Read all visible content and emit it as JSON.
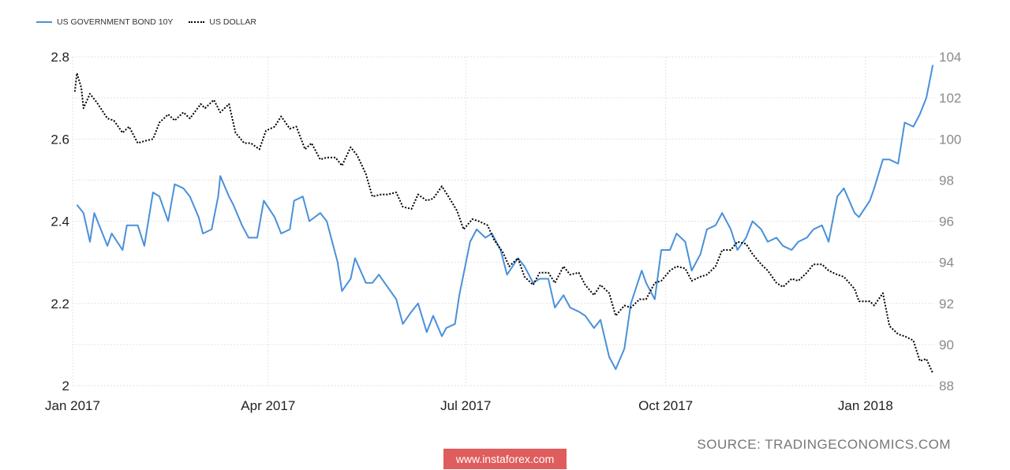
{
  "legend": [
    {
      "label": "US GOVERNMENT BOND 10Y",
      "color": "#4a90d9",
      "style": "solid"
    },
    {
      "label": "US DOLLAR",
      "color": "#000000",
      "style": "dotted"
    }
  ],
  "source": "SOURCE: TRADINGECONOMICS.COM",
  "watermark": "www.instaforex.com",
  "chart_data": {
    "type": "line",
    "grid": true,
    "legend_position": "top-left",
    "x_ticks": [
      {
        "label": "Jan 2017",
        "date": "2017-01-01"
      },
      {
        "label": "Apr 2017",
        "date": "2017-04-01"
      },
      {
        "label": "Jul 2017",
        "date": "2017-07-01"
      },
      {
        "label": "Oct 2017",
        "date": "2017-10-01"
      },
      {
        "label": "Jan 2018",
        "date": "2018-01-01"
      }
    ],
    "xlim": [
      "2017-01-01",
      "2018-02-02"
    ],
    "left_axis": {
      "ylim": [
        2.0,
        2.8
      ],
      "ticks": [
        "2",
        "2.2",
        "2.4",
        "2.6",
        "2.8"
      ]
    },
    "right_axis": {
      "ylim": [
        88,
        104
      ],
      "ticks": [
        "88",
        "90",
        "92",
        "94",
        "96",
        "98",
        "100",
        "102",
        "104"
      ]
    },
    "series": [
      {
        "name": "US GOVERNMENT BOND 10Y",
        "axis": "left",
        "color": "#4a90d9",
        "points": [
          [
            "2017-01-03",
            2.44
          ],
          [
            "2017-01-06",
            2.42
          ],
          [
            "2017-01-09",
            2.35
          ],
          [
            "2017-01-11",
            2.42
          ],
          [
            "2017-01-17",
            2.34
          ],
          [
            "2017-01-19",
            2.37
          ],
          [
            "2017-01-24",
            2.33
          ],
          [
            "2017-01-26",
            2.39
          ],
          [
            "2017-01-31",
            2.39
          ],
          [
            "2017-02-03",
            2.34
          ],
          [
            "2017-02-07",
            2.47
          ],
          [
            "2017-02-10",
            2.46
          ],
          [
            "2017-02-14",
            2.4
          ],
          [
            "2017-02-17",
            2.49
          ],
          [
            "2017-02-21",
            2.48
          ],
          [
            "2017-02-24",
            2.46
          ],
          [
            "2017-02-28",
            2.41
          ],
          [
            "2017-03-02",
            2.37
          ],
          [
            "2017-03-06",
            2.38
          ],
          [
            "2017-03-09",
            2.46
          ],
          [
            "2017-03-10",
            2.51
          ],
          [
            "2017-03-14",
            2.46
          ],
          [
            "2017-03-16",
            2.44
          ],
          [
            "2017-03-20",
            2.39
          ],
          [
            "2017-03-23",
            2.36
          ],
          [
            "2017-03-27",
            2.36
          ],
          [
            "2017-03-30",
            2.45
          ],
          [
            "2017-04-04",
            2.41
          ],
          [
            "2017-04-07",
            2.37
          ],
          [
            "2017-04-11",
            2.38
          ],
          [
            "2017-04-13",
            2.45
          ],
          [
            "2017-04-17",
            2.46
          ],
          [
            "2017-04-20",
            2.4
          ],
          [
            "2017-04-25",
            2.42
          ],
          [
            "2017-04-28",
            2.4
          ],
          [
            "2017-05-03",
            2.3
          ],
          [
            "2017-05-05",
            2.23
          ],
          [
            "2017-05-09",
            2.26
          ],
          [
            "2017-05-11",
            2.31
          ],
          [
            "2017-05-16",
            2.25
          ],
          [
            "2017-05-19",
            2.25
          ],
          [
            "2017-05-22",
            2.27
          ],
          [
            "2017-05-26",
            2.24
          ],
          [
            "2017-05-30",
            2.21
          ],
          [
            "2017-06-02",
            2.15
          ],
          [
            "2017-06-06",
            2.18
          ],
          [
            "2017-06-09",
            2.2
          ],
          [
            "2017-06-13",
            2.13
          ],
          [
            "2017-06-16",
            2.17
          ],
          [
            "2017-06-20",
            2.12
          ],
          [
            "2017-06-22",
            2.14
          ],
          [
            "2017-06-26",
            2.15
          ],
          [
            "2017-06-28",
            2.22
          ],
          [
            "2017-07-03",
            2.35
          ],
          [
            "2017-07-06",
            2.38
          ],
          [
            "2017-07-10",
            2.36
          ],
          [
            "2017-07-13",
            2.37
          ],
          [
            "2017-07-17",
            2.33
          ],
          [
            "2017-07-20",
            2.27
          ],
          [
            "2017-07-25",
            2.31
          ],
          [
            "2017-07-28",
            2.29
          ],
          [
            "2017-08-01",
            2.25
          ],
          [
            "2017-08-04",
            2.26
          ],
          [
            "2017-08-08",
            2.26
          ],
          [
            "2017-08-11",
            2.19
          ],
          [
            "2017-08-15",
            2.22
          ],
          [
            "2017-08-18",
            2.19
          ],
          [
            "2017-08-22",
            2.18
          ],
          [
            "2017-08-25",
            2.17
          ],
          [
            "2017-08-29",
            2.14
          ],
          [
            "2017-09-01",
            2.16
          ],
          [
            "2017-09-05",
            2.07
          ],
          [
            "2017-09-08",
            2.04
          ],
          [
            "2017-09-12",
            2.09
          ],
          [
            "2017-09-15",
            2.2
          ],
          [
            "2017-09-20",
            2.28
          ],
          [
            "2017-09-22",
            2.25
          ],
          [
            "2017-09-26",
            2.21
          ],
          [
            "2017-09-29",
            2.33
          ],
          [
            "2017-10-03",
            2.33
          ],
          [
            "2017-10-06",
            2.37
          ],
          [
            "2017-10-10",
            2.35
          ],
          [
            "2017-10-13",
            2.28
          ],
          [
            "2017-10-17",
            2.32
          ],
          [
            "2017-10-20",
            2.38
          ],
          [
            "2017-10-24",
            2.39
          ],
          [
            "2017-10-27",
            2.42
          ],
          [
            "2017-10-31",
            2.38
          ],
          [
            "2017-11-03",
            2.33
          ],
          [
            "2017-11-07",
            2.36
          ],
          [
            "2017-11-10",
            2.4
          ],
          [
            "2017-11-14",
            2.38
          ],
          [
            "2017-11-17",
            2.35
          ],
          [
            "2017-11-21",
            2.36
          ],
          [
            "2017-11-24",
            2.34
          ],
          [
            "2017-11-28",
            2.33
          ],
          [
            "2017-12-01",
            2.35
          ],
          [
            "2017-12-05",
            2.36
          ],
          [
            "2017-12-08",
            2.38
          ],
          [
            "2017-12-12",
            2.39
          ],
          [
            "2017-12-15",
            2.35
          ],
          [
            "2017-12-19",
            2.46
          ],
          [
            "2017-12-22",
            2.48
          ],
          [
            "2017-12-27",
            2.42
          ],
          [
            "2017-12-29",
            2.41
          ],
          [
            "2018-01-03",
            2.45
          ],
          [
            "2018-01-05",
            2.48
          ],
          [
            "2018-01-09",
            2.55
          ],
          [
            "2018-01-12",
            2.55
          ],
          [
            "2018-01-16",
            2.54
          ],
          [
            "2018-01-19",
            2.64
          ],
          [
            "2018-01-23",
            2.63
          ],
          [
            "2018-01-26",
            2.66
          ],
          [
            "2018-01-29",
            2.7
          ],
          [
            "2018-02-01",
            2.78
          ]
        ]
      },
      {
        "name": "US DOLLAR",
        "axis": "right",
        "color": "#000000",
        "points": [
          [
            "2017-01-02",
            102.3
          ],
          [
            "2017-01-03",
            103.2
          ],
          [
            "2017-01-05",
            102.5
          ],
          [
            "2017-01-06",
            101.5
          ],
          [
            "2017-01-09",
            102.2
          ],
          [
            "2017-01-12",
            101.8
          ],
          [
            "2017-01-17",
            101.0
          ],
          [
            "2017-01-20",
            100.9
          ],
          [
            "2017-01-24",
            100.3
          ],
          [
            "2017-01-27",
            100.6
          ],
          [
            "2017-01-31",
            99.8
          ],
          [
            "2017-02-03",
            99.9
          ],
          [
            "2017-02-07",
            100.0
          ],
          [
            "2017-02-10",
            100.8
          ],
          [
            "2017-02-14",
            101.2
          ],
          [
            "2017-02-17",
            100.9
          ],
          [
            "2017-02-21",
            101.3
          ],
          [
            "2017-02-24",
            101.0
          ],
          [
            "2017-03-01",
            101.7
          ],
          [
            "2017-03-03",
            101.5
          ],
          [
            "2017-03-07",
            101.9
          ],
          [
            "2017-03-10",
            101.3
          ],
          [
            "2017-03-14",
            101.7
          ],
          [
            "2017-03-17",
            100.3
          ],
          [
            "2017-03-21",
            99.8
          ],
          [
            "2017-03-24",
            99.8
          ],
          [
            "2017-03-28",
            99.5
          ],
          [
            "2017-03-31",
            100.4
          ],
          [
            "2017-04-04",
            100.6
          ],
          [
            "2017-04-07",
            101.1
          ],
          [
            "2017-04-11",
            100.5
          ],
          [
            "2017-04-14",
            100.6
          ],
          [
            "2017-04-18",
            99.5
          ],
          [
            "2017-04-21",
            99.8
          ],
          [
            "2017-04-25",
            99.0
          ],
          [
            "2017-04-28",
            99.1
          ],
          [
            "2017-05-02",
            99.1
          ],
          [
            "2017-05-05",
            98.7
          ],
          [
            "2017-05-09",
            99.6
          ],
          [
            "2017-05-12",
            99.2
          ],
          [
            "2017-05-16",
            98.3
          ],
          [
            "2017-05-19",
            97.2
          ],
          [
            "2017-05-23",
            97.3
          ],
          [
            "2017-05-26",
            97.3
          ],
          [
            "2017-05-30",
            97.4
          ],
          [
            "2017-06-02",
            96.7
          ],
          [
            "2017-06-06",
            96.6
          ],
          [
            "2017-06-09",
            97.3
          ],
          [
            "2017-06-13",
            97.0
          ],
          [
            "2017-06-16",
            97.1
          ],
          [
            "2017-06-20",
            97.7
          ],
          [
            "2017-06-23",
            97.2
          ],
          [
            "2017-06-27",
            96.5
          ],
          [
            "2017-06-30",
            95.6
          ],
          [
            "2017-07-04",
            96.1
          ],
          [
            "2017-07-07",
            96.0
          ],
          [
            "2017-07-11",
            95.8
          ],
          [
            "2017-07-14",
            95.1
          ],
          [
            "2017-07-18",
            94.5
          ],
          [
            "2017-07-21",
            93.8
          ],
          [
            "2017-07-25",
            94.2
          ],
          [
            "2017-07-28",
            93.3
          ],
          [
            "2017-08-01",
            92.9
          ],
          [
            "2017-08-04",
            93.5
          ],
          [
            "2017-08-08",
            93.5
          ],
          [
            "2017-08-11",
            93.0
          ],
          [
            "2017-08-15",
            93.8
          ],
          [
            "2017-08-18",
            93.4
          ],
          [
            "2017-08-22",
            93.5
          ],
          [
            "2017-08-25",
            92.9
          ],
          [
            "2017-08-29",
            92.4
          ],
          [
            "2017-09-01",
            92.9
          ],
          [
            "2017-09-05",
            92.5
          ],
          [
            "2017-09-08",
            91.4
          ],
          [
            "2017-09-12",
            91.9
          ],
          [
            "2017-09-15",
            91.8
          ],
          [
            "2017-09-19",
            92.2
          ],
          [
            "2017-09-22",
            92.2
          ],
          [
            "2017-09-26",
            93.0
          ],
          [
            "2017-09-29",
            93.1
          ],
          [
            "2017-10-03",
            93.6
          ],
          [
            "2017-10-06",
            93.8
          ],
          [
            "2017-10-10",
            93.7
          ],
          [
            "2017-10-13",
            93.1
          ],
          [
            "2017-10-17",
            93.3
          ],
          [
            "2017-10-20",
            93.4
          ],
          [
            "2017-10-24",
            93.8
          ],
          [
            "2017-10-27",
            94.6
          ],
          [
            "2017-10-31",
            94.6
          ],
          [
            "2017-11-03",
            95.0
          ],
          [
            "2017-11-07",
            94.9
          ],
          [
            "2017-11-10",
            94.4
          ],
          [
            "2017-11-14",
            93.9
          ],
          [
            "2017-11-17",
            93.6
          ],
          [
            "2017-11-21",
            93.0
          ],
          [
            "2017-11-24",
            92.8
          ],
          [
            "2017-11-28",
            93.2
          ],
          [
            "2017-12-01",
            93.1
          ],
          [
            "2017-12-05",
            93.5
          ],
          [
            "2017-12-08",
            93.9
          ],
          [
            "2017-12-12",
            93.9
          ],
          [
            "2017-12-15",
            93.6
          ],
          [
            "2017-12-19",
            93.4
          ],
          [
            "2017-12-22",
            93.3
          ],
          [
            "2017-12-27",
            92.7
          ],
          [
            "2017-12-29",
            92.1
          ],
          [
            "2018-01-03",
            92.1
          ],
          [
            "2018-01-05",
            91.9
          ],
          [
            "2018-01-09",
            92.5
          ],
          [
            "2018-01-12",
            90.9
          ],
          [
            "2018-01-16",
            90.5
          ],
          [
            "2018-01-19",
            90.4
          ],
          [
            "2018-01-23",
            90.2
          ],
          [
            "2018-01-26",
            89.2
          ],
          [
            "2018-01-29",
            89.3
          ],
          [
            "2018-02-01",
            88.6
          ]
        ]
      }
    ]
  }
}
